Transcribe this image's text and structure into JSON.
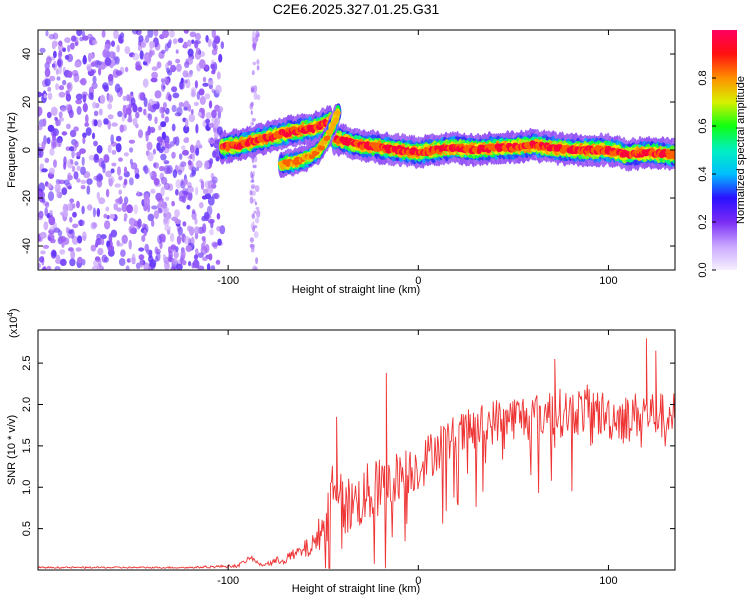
{
  "chart_data": [
    {
      "type": "heatmap",
      "title": "C2E6.2025.327.01.25.G31",
      "xlabel": "Height of straight line (km)",
      "ylabel": "Frequency (Hz)",
      "xlim": [
        -200,
        135
      ],
      "ylim": [
        -50,
        50
      ],
      "xticks": [
        -100,
        0,
        100
      ],
      "yticks": [
        -40,
        -20,
        0,
        20,
        40
      ],
      "colorbar": {
        "label": "Normalized spectral amplitude",
        "range": [
          0.0,
          1.0
        ],
        "ticks": [
          "0.0",
          "0.2",
          "0.4",
          "0.6",
          "0.8"
        ],
        "colors": [
          "#f2e6ff",
          "#9b59f6",
          "#3b1cff",
          "#00e0ff",
          "#00ff40",
          "#f0f000",
          "#ff8000",
          "#ff0000",
          "#ff0060"
        ]
      },
      "noise_region": {
        "x_range": [
          -200,
          -103
        ],
        "freq_range": [
          -50,
          50
        ],
        "amplitude": 0.15
      },
      "noise_stripe": {
        "x_range": [
          -88,
          -84
        ],
        "freq_range": [
          -50,
          50
        ],
        "amplitude": 0.1
      },
      "tracks": [
        {
          "name": "main-track",
          "points": [
            [
              -103,
              1
            ],
            [
              -95,
              2
            ],
            [
              -85,
              4
            ],
            [
              -75,
              6
            ],
            [
              -65,
              8
            ],
            [
              -55,
              9
            ],
            [
              -46,
              12
            ],
            [
              -45,
              5
            ],
            [
              -40,
              4
            ],
            [
              -30,
              2
            ],
            [
              -20,
              1
            ],
            [
              -10,
              0
            ],
            [
              0,
              -1
            ],
            [
              10,
              0
            ],
            [
              20,
              1
            ],
            [
              30,
              0
            ],
            [
              40,
              1
            ],
            [
              50,
              1
            ],
            [
              60,
              2
            ],
            [
              70,
              1
            ],
            [
              80,
              0
            ],
            [
              90,
              0
            ],
            [
              100,
              0
            ],
            [
              110,
              -2
            ],
            [
              120,
              -1
            ],
            [
              135,
              -2
            ]
          ],
          "width_hz": 3,
          "peak_amplitude": 0.95
        },
        {
          "name": "secondary-track",
          "points": [
            [
              -72,
              -6
            ],
            [
              -65,
              -5
            ],
            [
              -58,
              -3
            ],
            [
              -52,
              0
            ],
            [
              -48,
              5
            ],
            [
              -45,
              10
            ],
            [
              -42,
              16
            ]
          ],
          "width_hz": 2.5,
          "peak_amplitude": 0.7
        }
      ]
    },
    {
      "type": "line",
      "title": "",
      "xlabel": "Height of straight line (km)",
      "ylabel": "SNR (10 * v/v)",
      "multiplier": "(x10",
      "multiplier_exponent": "4",
      "multiplier_close": ")",
      "xlim": [
        -200,
        135
      ],
      "ylim": [
        0,
        2.9
      ],
      "xticks": [
        -100,
        0,
        100
      ],
      "yticks": [
        0.5,
        1.0,
        1.5,
        2.0,
        2.5
      ],
      "ytick_labels": [
        "0.5",
        "1.0",
        "1.5",
        "2.0",
        "2.5"
      ],
      "color": "#ee3333",
      "series": [
        {
          "name": "SNR",
          "x": [
            -200,
            -120,
            -95,
            -88,
            -83,
            -75,
            -65,
            -55,
            -50,
            -46,
            -43,
            -40,
            -35,
            -30,
            -25,
            -20,
            -15,
            -10,
            -5,
            0,
            5,
            10,
            20,
            30,
            40,
            50,
            60,
            70,
            80,
            90,
            100,
            110,
            120,
            130,
            135
          ],
          "y": [
            0.03,
            0.03,
            0.05,
            0.15,
            0.06,
            0.1,
            0.18,
            0.3,
            0.55,
            0.9,
            1.2,
            0.75,
            0.8,
            0.85,
            0.95,
            1.0,
            1.05,
            1.15,
            1.2,
            1.25,
            1.35,
            1.5,
            1.6,
            1.7,
            1.8,
            1.85,
            1.85,
            1.9,
            1.9,
            1.95,
            1.85,
            1.85,
            1.9,
            1.85,
            1.9
          ],
          "noise": [
            0.01,
            0.01,
            0.02,
            0.03,
            0.02,
            0.05,
            0.08,
            0.15,
            0.25,
            0.45,
            0.45,
            0.4,
            0.35,
            0.35,
            0.4,
            0.35,
            0.35,
            0.3,
            0.3,
            0.3,
            0.3,
            0.3,
            0.28,
            0.28,
            0.28,
            0.28,
            0.3,
            0.3,
            0.3,
            0.3,
            0.3,
            0.28,
            0.3,
            0.28,
            0.25
          ]
        }
      ],
      "spikes": [
        {
          "x": -43,
          "y": 1.85
        },
        {
          "x": -17,
          "y": 2.38
        },
        {
          "x": 120,
          "y": 2.8
        },
        {
          "x": 125,
          "y": 2.65
        },
        {
          "x": 72,
          "y": 2.55
        }
      ]
    }
  ]
}
